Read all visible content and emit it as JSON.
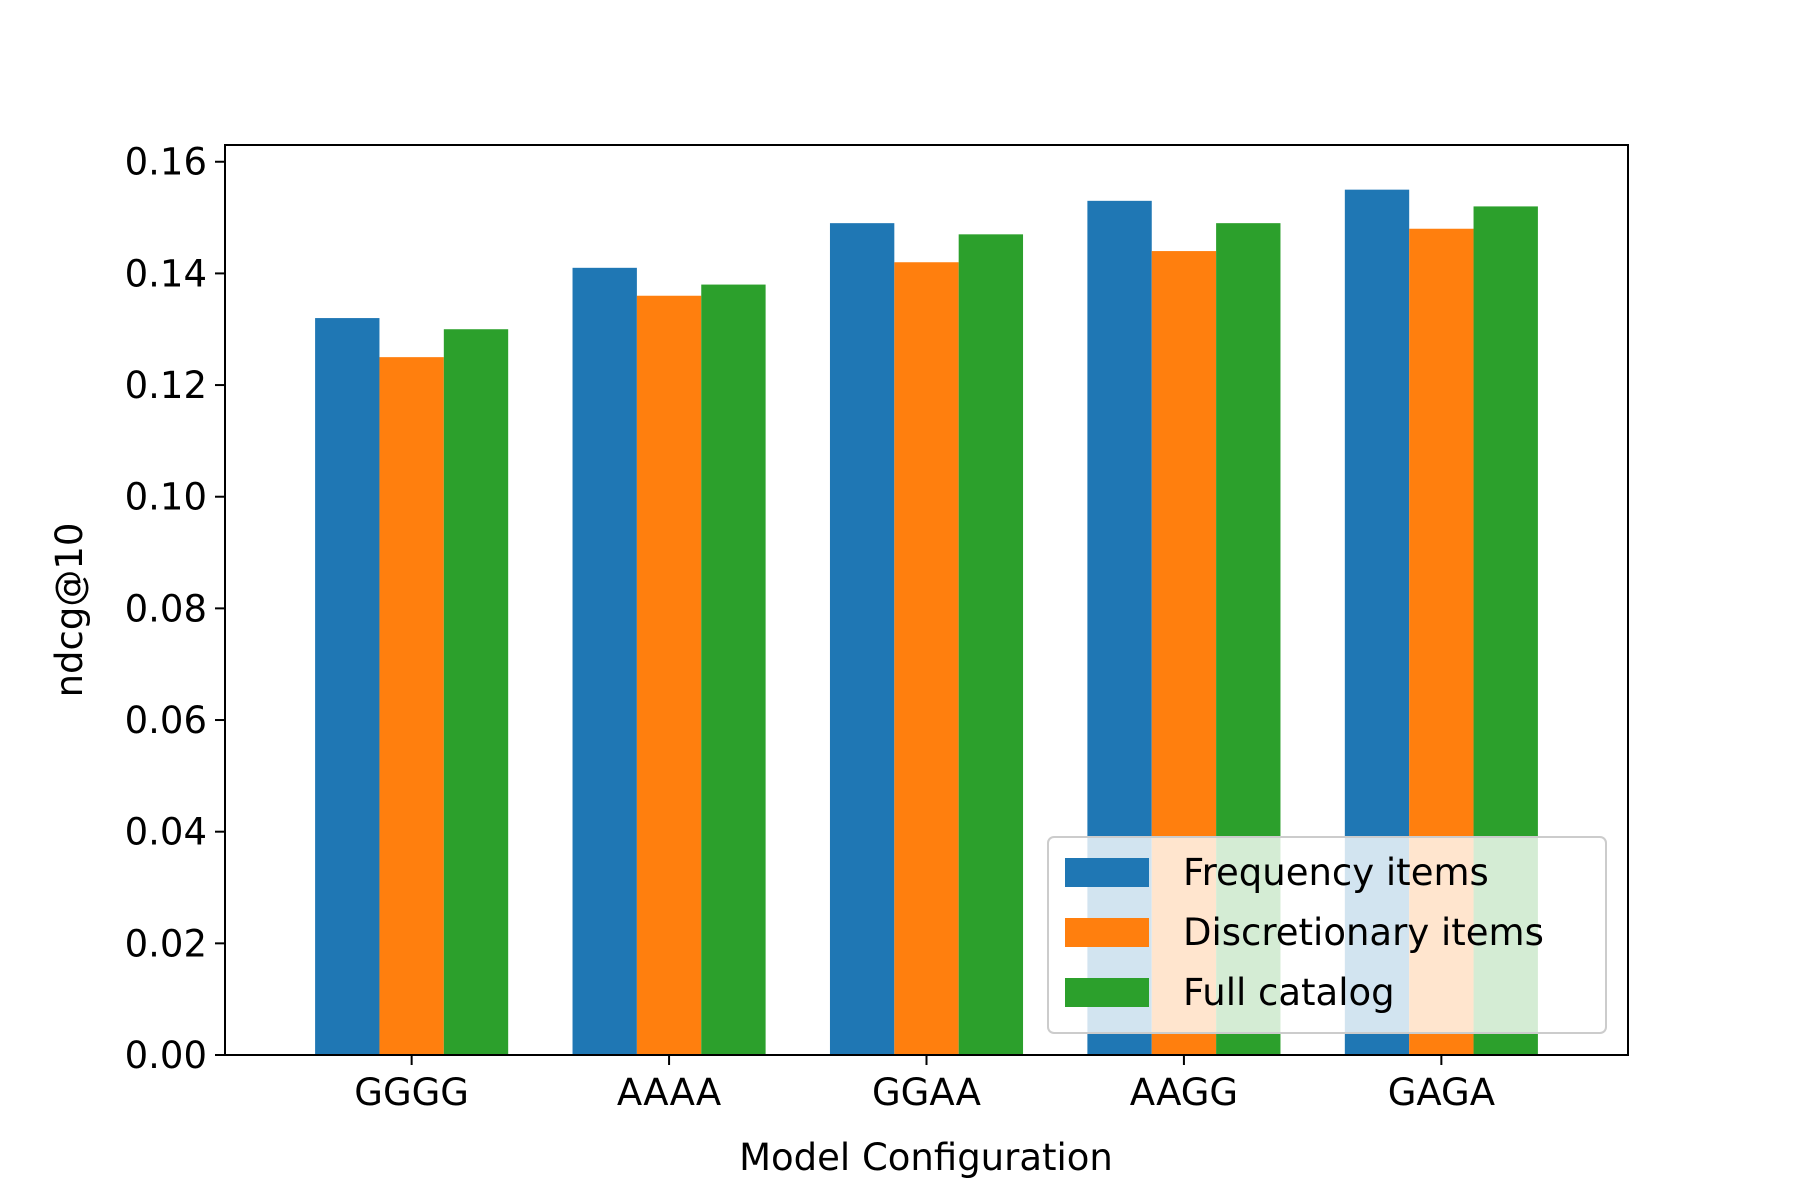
{
  "chart_data": {
    "type": "bar",
    "title": "",
    "xlabel": "Model Configuration",
    "ylabel": "ndcg@10",
    "categories": [
      "GGGG",
      "AAAA",
      "GGAA",
      "AAGG",
      "GAGA"
    ],
    "ylim": [
      0,
      0.163
    ],
    "yticks": [
      0.0,
      0.02,
      0.04,
      0.06,
      0.08,
      0.1,
      0.12,
      0.14,
      0.16
    ],
    "ytick_labels": [
      "0.00",
      "0.02",
      "0.04",
      "0.06",
      "0.08",
      "0.10",
      "0.12",
      "0.14",
      "0.16"
    ],
    "grid": false,
    "legend_position": "lower-right",
    "series": [
      {
        "name": "Frequency items",
        "color": "#1f77b4",
        "values": [
          0.132,
          0.141,
          0.149,
          0.153,
          0.155
        ]
      },
      {
        "name": "Discretionary items",
        "color": "#ff7f0e",
        "values": [
          0.125,
          0.136,
          0.142,
          0.144,
          0.148
        ]
      },
      {
        "name": "Full catalog",
        "color": "#2ca02c",
        "values": [
          0.13,
          0.138,
          0.147,
          0.149,
          0.152
        ]
      }
    ]
  }
}
